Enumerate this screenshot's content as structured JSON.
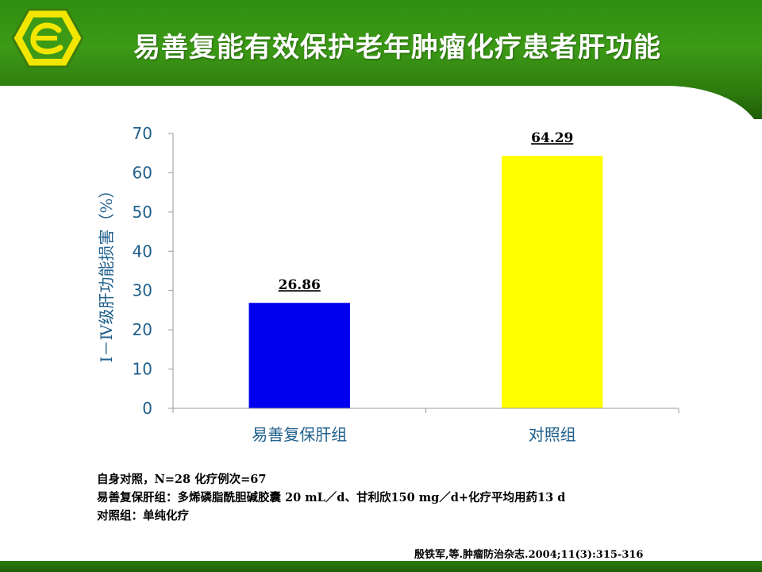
{
  "slide": {
    "title": "易善复能有效保护老年肿瘤化疗患者肝功能",
    "colors": {
      "header_green": "#3c9a16",
      "logo_yellow": "#f2e600"
    }
  },
  "chart_data": {
    "type": "bar",
    "categories": [
      "易善复保肝组",
      "对照组"
    ],
    "values": [
      26.86,
      64.29
    ],
    "value_labels": [
      "26.86",
      "64.29"
    ],
    "bar_colors": [
      "#0000ee",
      "#ffff00"
    ],
    "title": "",
    "xlabel": "",
    "ylabel": "Ⅰ－Ⅳ级肝功能损害（%）",
    "ylim": [
      0,
      70
    ],
    "yticks": [
      "0",
      "10",
      "20",
      "30",
      "40",
      "50",
      "60",
      "70"
    ],
    "grid": false,
    "legend": "none"
  },
  "notes": {
    "line1": "自身对照，N=28  化疗例次=67",
    "line2": "易善复保肝组：多烯磷脂酰胆碱胶囊 20 mL／d、甘利欣150 mg／d+化疗平均用药13 d",
    "line3": "对照组：单纯化疗"
  },
  "reference": "殷铁军,等.肿瘤防治杂志.2004;11(3):315-316"
}
